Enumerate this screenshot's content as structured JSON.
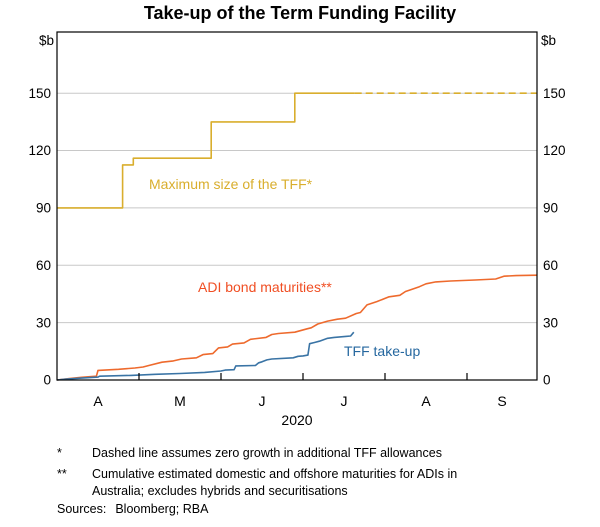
{
  "title": "Take-up of the Term Funding Facility",
  "chart_data": {
    "type": "line",
    "title": "Take-up of the Term Funding Facility",
    "unit_left": "$b",
    "unit_right": "$b",
    "grid": true,
    "x_axis": {
      "year_label": "2020",
      "month_labels": [
        "A",
        "M",
        "J",
        "J",
        "A",
        "S"
      ],
      "domain_months": [
        0,
        5.854
      ],
      "tick_positions": [
        1,
        2,
        3,
        4,
        5
      ]
    },
    "y_axis": {
      "ticks": [
        0,
        30,
        60,
        90,
        120,
        150
      ],
      "ylim": [
        0,
        182
      ],
      "labelled_both_sides": true
    },
    "colors": {
      "grid": "#c8c8c8",
      "frame": "#000000"
    },
    "series": [
      {
        "name": "Maximum size of the TFF*",
        "label_text": "Maximum size of the TFF*",
        "color": "#d9ae2d",
        "style": "step, solid then dashed (dashed assumes zero growth)",
        "points": [
          [
            0,
            90
          ],
          [
            0.8,
            90
          ],
          [
            0.8,
            112.5
          ],
          [
            0.93,
            112.5
          ],
          [
            0.93,
            116
          ],
          [
            1.88,
            116
          ],
          [
            1.88,
            135
          ],
          [
            2.9,
            135
          ],
          [
            2.9,
            150
          ],
          [
            3.63,
            150
          ]
        ],
        "points_dashed": [
          [
            3.63,
            150
          ],
          [
            5.854,
            150
          ]
        ]
      },
      {
        "name": "ADI bond maturities**",
        "label_text": "ADI bond maturities**",
        "color": "#ee6a2d",
        "label_color": "#f04e23",
        "style": "cumulative staircase",
        "points": [
          [
            0,
            0
          ],
          [
            0.15,
            0.8
          ],
          [
            0.3,
            1.4
          ],
          [
            0.48,
            2
          ],
          [
            0.5,
            5
          ],
          [
            0.75,
            5.6
          ],
          [
            0.95,
            6.3
          ],
          [
            1.05,
            6.8
          ],
          [
            1.12,
            7.6
          ],
          [
            1.28,
            9.3
          ],
          [
            1.42,
            10
          ],
          [
            1.52,
            11
          ],
          [
            1.7,
            11.6
          ],
          [
            1.78,
            13.3
          ],
          [
            1.9,
            13.8
          ],
          [
            1.97,
            16.8
          ],
          [
            2.08,
            17.3
          ],
          [
            2.14,
            18.8
          ],
          [
            2.28,
            19.4
          ],
          [
            2.36,
            21.3
          ],
          [
            2.55,
            22.3
          ],
          [
            2.62,
            23.8
          ],
          [
            2.7,
            24.3
          ],
          [
            2.9,
            25
          ],
          [
            3.05,
            26.8
          ],
          [
            3.1,
            27.3
          ],
          [
            3.18,
            29.3
          ],
          [
            3.3,
            30.8
          ],
          [
            3.42,
            31.8
          ],
          [
            3.52,
            32.3
          ],
          [
            3.65,
            34.8
          ],
          [
            3.7,
            35.3
          ],
          [
            3.78,
            39.3
          ],
          [
            3.9,
            41
          ],
          [
            4.05,
            43.5
          ],
          [
            4.18,
            44.3
          ],
          [
            4.25,
            46.3
          ],
          [
            4.3,
            47
          ],
          [
            4.42,
            48.8
          ],
          [
            4.5,
            50.3
          ],
          [
            4.62,
            51.3
          ],
          [
            4.8,
            51.8
          ],
          [
            5.1,
            52.3
          ],
          [
            5.35,
            52.8
          ],
          [
            5.45,
            54.3
          ],
          [
            5.6,
            54.6
          ],
          [
            5.854,
            54.8
          ]
        ]
      },
      {
        "name": "TFF take-up",
        "label_text": "TFF take-up",
        "color": "#3a74a5",
        "label_color": "#25679f",
        "style": "cumulative staircase",
        "points": [
          [
            0,
            0
          ],
          [
            0.1,
            0.4
          ],
          [
            0.3,
            1
          ],
          [
            0.5,
            1.5
          ],
          [
            0.52,
            2
          ],
          [
            0.9,
            2.4
          ],
          [
            1.2,
            3
          ],
          [
            1.5,
            3.4
          ],
          [
            1.8,
            4
          ],
          [
            2.0,
            4.7
          ],
          [
            2.05,
            5.2
          ],
          [
            2.16,
            5.4
          ],
          [
            2.18,
            7.4
          ],
          [
            2.42,
            7.6
          ],
          [
            2.46,
            9
          ],
          [
            2.5,
            9.5
          ],
          [
            2.56,
            10.5
          ],
          [
            2.62,
            11
          ],
          [
            2.88,
            11.6
          ],
          [
            2.94,
            12.4
          ],
          [
            3.0,
            12.6
          ],
          [
            3.06,
            13
          ],
          [
            3.08,
            19
          ],
          [
            3.14,
            19.6
          ],
          [
            3.2,
            20.3
          ],
          [
            3.3,
            21.8
          ],
          [
            3.38,
            22.3
          ],
          [
            3.52,
            22.8
          ],
          [
            3.58,
            23
          ],
          [
            3.62,
            25
          ]
        ]
      }
    ]
  },
  "footnotes": [
    {
      "marker": "*",
      "text": "Dashed line assumes zero growth in additional TFF allowances"
    },
    {
      "marker": "**",
      "text": "Cumulative estimated domestic and offshore maturities for ADIs in Australia; excludes hybrids and securitisations"
    }
  ],
  "sources": {
    "label": "Sources:",
    "text": "Bloomberg; RBA"
  }
}
